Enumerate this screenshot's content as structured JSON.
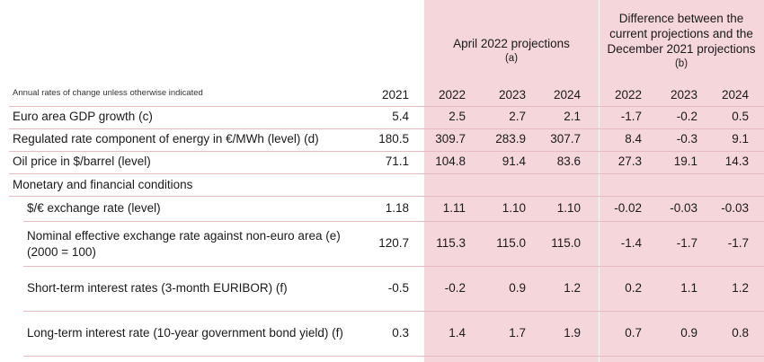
{
  "table": {
    "group_april": {
      "title": "April 2022 projections",
      "note": "(a)"
    },
    "group_diff": {
      "title_lines": [
        "Difference between the",
        "current projections and the",
        "December 2021 projections"
      ],
      "note": "(b)"
    },
    "units_note": "Annual rates of change unless otherwise indicated",
    "years": [
      "2021",
      "2022",
      "2023",
      "2024",
      "2022",
      "2023",
      "2024"
    ],
    "rows": [
      {
        "label": "Euro area GDP growth (c)",
        "values": [
          "5.4",
          "2.5",
          "2.7",
          "2.1",
          "-1.7",
          "-0.2",
          "0.5"
        ]
      },
      {
        "label": "Regulated rate component of energy in €/MWh (level) (d)",
        "values": [
          "180.5",
          "309.7",
          "283.9",
          "307.7",
          "8.4",
          "-0.3",
          "9.1"
        ]
      },
      {
        "label": "Oil price in $/barrel (level)",
        "values": [
          "71.1",
          "104.8",
          "91.4",
          "83.6",
          "27.3",
          "19.1",
          "14.3"
        ]
      },
      {
        "label": "Monetary and financial conditions",
        "values": []
      },
      {
        "label": "$/€ exchange rate (level)",
        "values": [
          "1.18",
          "1.11",
          "1.10",
          "1.10",
          "-0.02",
          "-0.03",
          "-0.03"
        ]
      },
      {
        "label_lines": [
          "Nominal effective exchange rate against non-euro area (e)",
          "(2000 = 100)"
        ],
        "values": [
          "120.7",
          "115.3",
          "115.0",
          "115.0",
          "-1.4",
          "-1.7",
          "-1.7"
        ]
      },
      {
        "label": "Short-term interest rates (3-month EURIBOR) (f)",
        "values": [
          "-0.5",
          "-0.2",
          "0.9",
          "1.2",
          "0.2",
          "1.1",
          "1.2"
        ]
      },
      {
        "label": "Long-term interest rate (10-year government bond yield) (f)",
        "values": [
          "0.3",
          "1.4",
          "1.7",
          "1.9",
          "0.7",
          "0.9",
          "0.8"
        ]
      }
    ]
  }
}
